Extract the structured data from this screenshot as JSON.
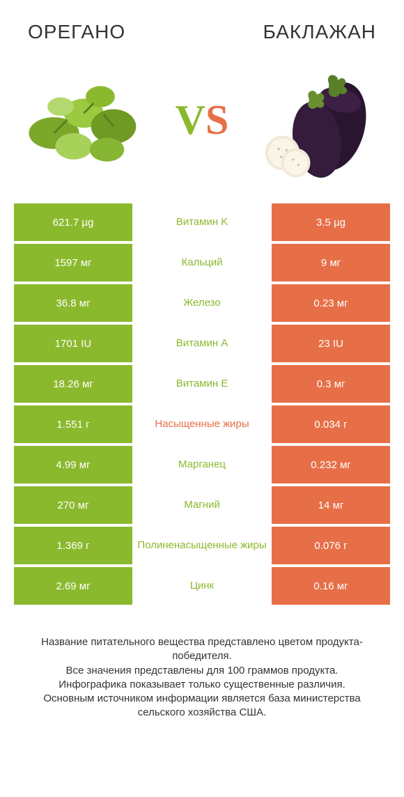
{
  "header": {
    "left_title": "OРЕГАНО",
    "right_title": "БАКЛАЖАН"
  },
  "vs": {
    "label_v": "V",
    "label_s": "S",
    "v_color": "#8bb92e",
    "s_color": "#e76f47"
  },
  "colors": {
    "left_bg": "#8bb92e",
    "right_bg": "#e76f47",
    "mid_green": "#8bb92e",
    "mid_orange": "#e76f47",
    "background": "#ffffff",
    "row_gap": 4
  },
  "table": {
    "rows": [
      {
        "left": "621.7 µg",
        "mid": "Витамин K",
        "right": "3.5 µg",
        "mid_color": "#8bb92e"
      },
      {
        "left": "1597 мг",
        "mid": "Кальций",
        "right": "9 мг",
        "mid_color": "#8bb92e"
      },
      {
        "left": "36.8 мг",
        "mid": "Железо",
        "right": "0.23 мг",
        "mid_color": "#8bb92e"
      },
      {
        "left": "1701 IU",
        "mid": "Витамин A",
        "right": "23 IU",
        "mid_color": "#8bb92e"
      },
      {
        "left": "18.26 мг",
        "mid": "Витамин E",
        "right": "0.3 мг",
        "mid_color": "#8bb92e"
      },
      {
        "left": "1.551 г",
        "mid": "Насыщенные жиры",
        "right": "0.034 г",
        "mid_color": "#e76f47"
      },
      {
        "left": "4.99 мг",
        "mid": "Марганец",
        "right": "0.232 мг",
        "mid_color": "#8bb92e"
      },
      {
        "left": "270 мг",
        "mid": "Магний",
        "right": "14 мг",
        "mid_color": "#8bb92e"
      },
      {
        "left": "1.369 г",
        "mid": "Полиненасыщенные жиры",
        "right": "0.076 г",
        "mid_color": "#8bb92e"
      },
      {
        "left": "2.69 мг",
        "mid": "Цинк",
        "right": "0.16 мг",
        "mid_color": "#8bb92e"
      }
    ]
  },
  "footer": {
    "line1": "Название питательного вещества представлено цветом продукта-победителя.",
    "line2": "Все значения представлены для 100 граммов продукта.",
    "line3": "Инфографика показывает только существенные различия.",
    "line4": "Основным источником информации является база министерства сельского хозяйства США."
  }
}
